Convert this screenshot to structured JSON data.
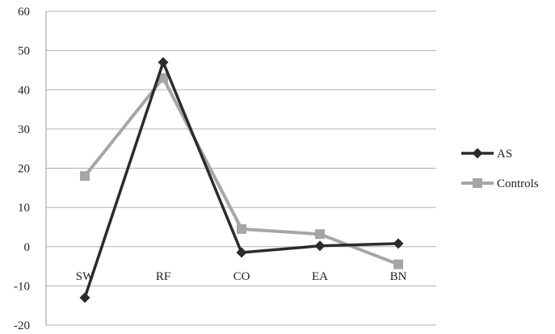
{
  "chart_data": {
    "type": "line",
    "title": "",
    "xlabel": "",
    "ylabel": "",
    "categories": [
      "SW",
      "RF",
      "CO",
      "EA",
      "BN"
    ],
    "ylim": [
      -20,
      60
    ],
    "yticks": [
      -20,
      -10,
      0,
      10,
      20,
      30,
      40,
      50,
      60
    ],
    "grid": true,
    "legend_position": "right",
    "series": [
      {
        "name": "AS",
        "values": [
          -13,
          47,
          -1.5,
          0.2,
          0.8
        ],
        "color": "#2b2b2b",
        "marker": "diamond"
      },
      {
        "name": "Controls",
        "values": [
          18,
          43,
          4.5,
          3.2,
          -4.5
        ],
        "color": "#a6a6a6",
        "marker": "square"
      }
    ]
  }
}
